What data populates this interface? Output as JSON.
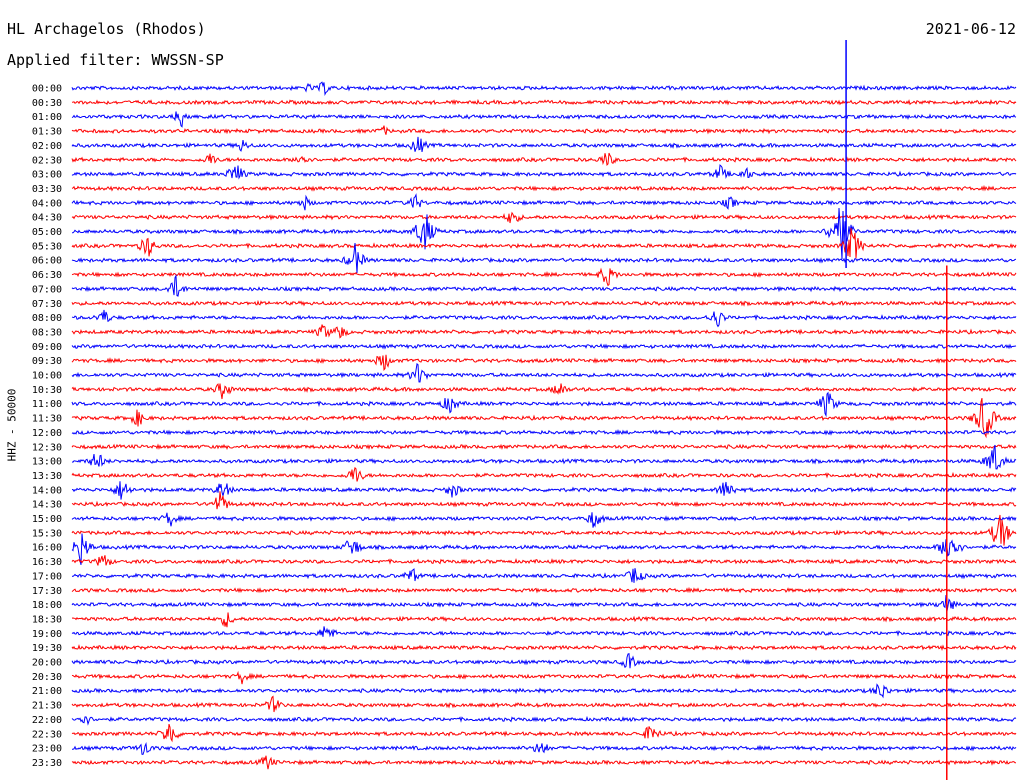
{
  "header": {
    "station": "HL Archagelos (Rhodos)",
    "filter": "Applied filter: WWSSN-SP",
    "date": "2021-06-12"
  },
  "chart_data": {
    "type": "line",
    "title": "HL Archagelos (Rhodos)",
    "subtitle": "Applied filter: WWSSN-SP",
    "date": "2021-06-12",
    "ylabel": "HHZ - 50000",
    "row_labels": [
      "00:00",
      "00:30",
      "01:00",
      "01:30",
      "02:00",
      "02:30",
      "03:00",
      "03:30",
      "04:00",
      "04:30",
      "05:00",
      "05:30",
      "06:00",
      "06:30",
      "07:00",
      "07:30",
      "08:00",
      "08:30",
      "09:00",
      "09:30",
      "10:00",
      "10:30",
      "11:00",
      "11:30",
      "12:00",
      "12:30",
      "13:00",
      "13:30",
      "14:00",
      "14:30",
      "15:00",
      "15:30",
      "16:00",
      "16:30",
      "17:00",
      "17:30",
      "18:00",
      "18:30",
      "19:00",
      "19:30",
      "20:00",
      "20:30",
      "21:00",
      "21:30",
      "22:00",
      "22:30",
      "23:00",
      "23:30"
    ],
    "trace_colors": [
      "#0000ff",
      "#ff0000"
    ],
    "row_minutes": 30,
    "events": [
      {
        "row": 0,
        "minute": 7.5,
        "amp": 5
      },
      {
        "row": 0,
        "minute": 8.0,
        "amp": 8
      },
      {
        "row": 2,
        "minute": 3.3,
        "amp": 6
      },
      {
        "row": 2,
        "minute": 3.5,
        "amp": 12
      },
      {
        "row": 3,
        "minute": 9.9,
        "amp": 6
      },
      {
        "row": 4,
        "minute": 5.4,
        "amp": 8
      },
      {
        "row": 4,
        "minute": 11.0,
        "amp": 12
      },
      {
        "row": 5,
        "minute": 4.4,
        "amp": 8
      },
      {
        "row": 5,
        "minute": 7.3,
        "amp": 8
      },
      {
        "row": 5,
        "minute": 17.0,
        "amp": 10
      },
      {
        "row": 6,
        "minute": 5.2,
        "amp": 14
      },
      {
        "row": 6,
        "minute": 20.6,
        "amp": 10
      },
      {
        "row": 6,
        "minute": 21.4,
        "amp": 8
      },
      {
        "row": 8,
        "minute": 7.4,
        "amp": 8
      },
      {
        "row": 8,
        "minute": 10.9,
        "amp": 10
      },
      {
        "row": 8,
        "minute": 20.9,
        "amp": 8
      },
      {
        "row": 9,
        "minute": 14.0,
        "amp": 10
      },
      {
        "row": 10,
        "minute": 11.2,
        "amp": 26
      },
      {
        "row": 10,
        "minute": 24.4,
        "amp": 40
      },
      {
        "row": 11,
        "minute": 2.4,
        "amp": 14
      },
      {
        "row": 11,
        "minute": 24.8,
        "amp": 22
      },
      {
        "row": 12,
        "minute": 9.0,
        "amp": 18
      },
      {
        "row": 13,
        "minute": 17.0,
        "amp": 14
      },
      {
        "row": 14,
        "minute": 3.3,
        "amp": 14
      },
      {
        "row": 16,
        "minute": 1.0,
        "amp": 10
      },
      {
        "row": 16,
        "minute": 20.5,
        "amp": 12
      },
      {
        "row": 17,
        "minute": 8.0,
        "amp": 10
      },
      {
        "row": 17,
        "minute": 8.5,
        "amp": 10
      },
      {
        "row": 19,
        "minute": 9.9,
        "amp": 12
      },
      {
        "row": 20,
        "minute": 11.0,
        "amp": 14
      },
      {
        "row": 21,
        "minute": 4.8,
        "amp": 12
      },
      {
        "row": 21,
        "minute": 15.5,
        "amp": 10
      },
      {
        "row": 22,
        "minute": 12.0,
        "amp": 12
      },
      {
        "row": 22,
        "minute": 24.0,
        "amp": 16
      },
      {
        "row": 23,
        "minute": 2.1,
        "amp": 10
      },
      {
        "row": 23,
        "minute": 29.0,
        "amp": 30
      },
      {
        "row": 26,
        "minute": 0.8,
        "amp": 12
      },
      {
        "row": 26,
        "minute": 29.3,
        "amp": 20
      },
      {
        "row": 27,
        "minute": 9.0,
        "amp": 12
      },
      {
        "row": 28,
        "minute": 1.6,
        "amp": 14
      },
      {
        "row": 28,
        "minute": 4.8,
        "amp": 12
      },
      {
        "row": 28,
        "minute": 12.1,
        "amp": 10
      },
      {
        "row": 28,
        "minute": 20.8,
        "amp": 14
      },
      {
        "row": 29,
        "minute": 4.7,
        "amp": 14
      },
      {
        "row": 30,
        "minute": 3.1,
        "amp": 10
      },
      {
        "row": 30,
        "minute": 16.6,
        "amp": 12
      },
      {
        "row": 31,
        "minute": 29.5,
        "amp": 24
      },
      {
        "row": 32,
        "minute": 0.3,
        "amp": 20
      },
      {
        "row": 32,
        "minute": 8.9,
        "amp": 14
      },
      {
        "row": 32,
        "minute": 27.9,
        "amp": 24
      },
      {
        "row": 33,
        "minute": 1.0,
        "amp": 10
      },
      {
        "row": 34,
        "minute": 10.8,
        "amp": 10
      },
      {
        "row": 34,
        "minute": 17.9,
        "amp": 12
      },
      {
        "row": 36,
        "minute": 27.8,
        "amp": 12
      },
      {
        "row": 37,
        "minute": 4.9,
        "amp": 10
      },
      {
        "row": 38,
        "minute": 8.1,
        "amp": 12
      },
      {
        "row": 40,
        "minute": 17.7,
        "amp": 10
      },
      {
        "row": 41,
        "minute": 5.4,
        "amp": 8
      },
      {
        "row": 42,
        "minute": 25.7,
        "amp": 12
      },
      {
        "row": 43,
        "minute": 6.4,
        "amp": 10
      },
      {
        "row": 44,
        "minute": 0.4,
        "amp": 8
      },
      {
        "row": 45,
        "minute": 3.1,
        "amp": 16
      },
      {
        "row": 45,
        "minute": 18.4,
        "amp": 12
      },
      {
        "row": 46,
        "minute": 2.3,
        "amp": 10
      },
      {
        "row": 46,
        "minute": 14.9,
        "amp": 10
      },
      {
        "row": 47,
        "minute": 6.2,
        "amp": 10
      },
      {
        "row": 0,
        "minute": 24.6,
        "amp": 180
      },
      {
        "row": 27,
        "minute": 27.8,
        "amp": 420
      }
    ]
  }
}
